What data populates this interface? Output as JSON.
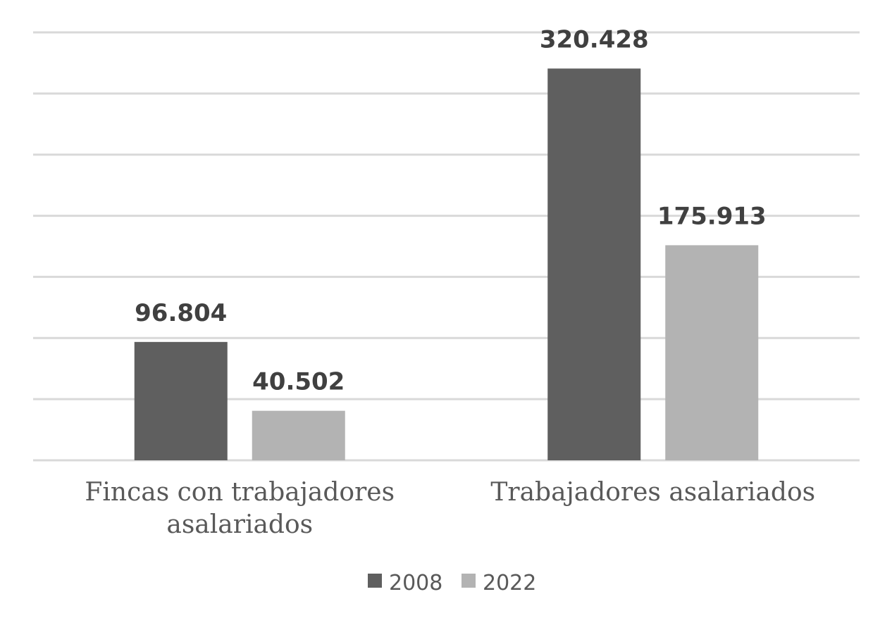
{
  "chart_data": {
    "type": "bar",
    "categories": [
      [
        "Fincas con trabajadores",
        "asalariados"
      ],
      [
        "Trabajadores asalariados"
      ]
    ],
    "series": [
      {
        "name": "2008",
        "color": "#5f5f5f",
        "values": [
          96804,
          320428
        ],
        "labels": [
          "96.804",
          "320.428"
        ]
      },
      {
        "name": "2022",
        "color": "#b3b3b3",
        "values": [
          40502,
          175913
        ],
        "labels": [
          "40.502",
          "175.913"
        ]
      }
    ],
    "ylim": [
      0,
      350000
    ],
    "gridlines": true,
    "legend": "bottom",
    "gridline_color": "#d9d9d9"
  }
}
